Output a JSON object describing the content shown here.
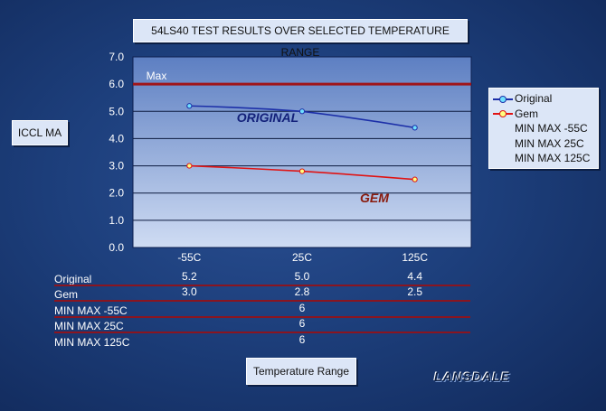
{
  "chart_data": {
    "type": "line",
    "title": "54LS40 TEST RESULTS OVER SELECTED TEMPERATURE RANGE",
    "xlabel": "Temperature Range",
    "ylabel": "ICCL MA",
    "categories": [
      "-55C",
      "25C",
      "125C"
    ],
    "ylim": [
      0,
      7
    ],
    "yticks": [
      "0.0",
      "1.0",
      "2.0",
      "3.0",
      "4.0",
      "5.0",
      "6.0",
      "7.0"
    ],
    "grid": true,
    "legend_position": "right",
    "series": [
      {
        "name": "Original",
        "values": [
          5.2,
          5.0,
          4.4
        ],
        "color": "#1c2fa8",
        "marker_fill": "#6fe0ff"
      },
      {
        "name": "Gem",
        "values": [
          3.0,
          2.8,
          2.5
        ],
        "color": "#e01414",
        "marker_fill": "#ffff80"
      }
    ],
    "limits": [
      {
        "name": "MIN MAX -55C",
        "value": 6
      },
      {
        "name": "MIN MAX 25C",
        "value": 6
      },
      {
        "name": "MIN MAX 125C",
        "value": 6
      }
    ],
    "max_line": {
      "value": 6.0,
      "label": "Max",
      "color": "#a01418"
    },
    "annotations": {
      "original": "ORIGINAL",
      "gem": "GEM"
    },
    "table": {
      "rows": [
        {
          "label": "Original",
          "cells": [
            "5.2",
            "5.0",
            "4.4"
          ]
        },
        {
          "label": "Gem",
          "cells": [
            "3.0",
            "2.8",
            "2.5"
          ]
        },
        {
          "label": "MIN MAX -55C",
          "cells": [
            "",
            "6",
            ""
          ]
        },
        {
          "label": "MIN MAX 25C",
          "cells": [
            "",
            "6",
            ""
          ]
        },
        {
          "label": "MIN MAX 125C",
          "cells": [
            "",
            "6",
            ""
          ]
        }
      ]
    }
  },
  "brand": "LANSDALE"
}
